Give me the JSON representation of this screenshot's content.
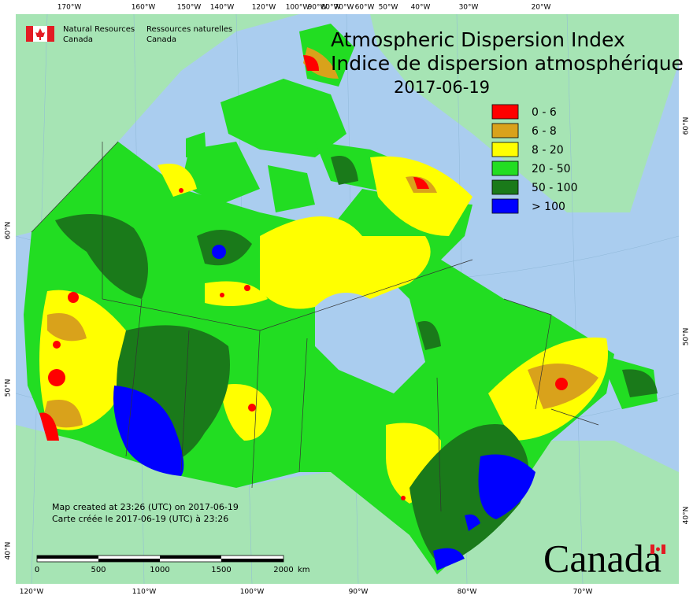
{
  "header": {
    "org_en": [
      "Natural Resources",
      "Canada"
    ],
    "org_fr": [
      "Ressources naturelles",
      "Canada"
    ]
  },
  "title": [
    "Atmospheric Dispersion Index",
    "Indice de dispersion atmosphérique"
  ],
  "date": "2017-06-19",
  "legend": [
    {
      "label": "0 - 6",
      "color": "#ff0000"
    },
    {
      "label": "6 - 8",
      "color": "#d9a21b"
    },
    {
      "label": "8 - 20",
      "color": "#ffff00"
    },
    {
      "label": "20 - 50",
      "color": "#22dd22"
    },
    {
      "label": "50 - 100",
      "color": "#1a7a1a"
    },
    {
      "label": "> 100",
      "color": "#0000ff"
    }
  ],
  "footer_notes": [
    "Map created at 23:26 (UTC) on 2017-06-19",
    "Carte créée le 2017-06-19 (UTC) à 23:26"
  ],
  "scale_bar": {
    "labels": [
      "0",
      "500",
      "1000",
      "1500",
      "2000"
    ],
    "unit": "km"
  },
  "graticule": {
    "top": [
      "170°W",
      "160°W",
      "150°W",
      "140°W",
      "120°W",
      "100°W",
      "90°W",
      "80°W",
      "70°W",
      "60°W",
      "50°W",
      "40°W",
      "30°W",
      "20°W"
    ],
    "bottom": [
      "120°W",
      "110°W",
      "100°W",
      "90°W",
      "80°W",
      "70°W"
    ],
    "left": [
      "60°N",
      "50°N",
      "40°N"
    ],
    "right": [
      "60°N",
      "50°N",
      "40°N"
    ]
  },
  "wordmark": "Canada"
}
